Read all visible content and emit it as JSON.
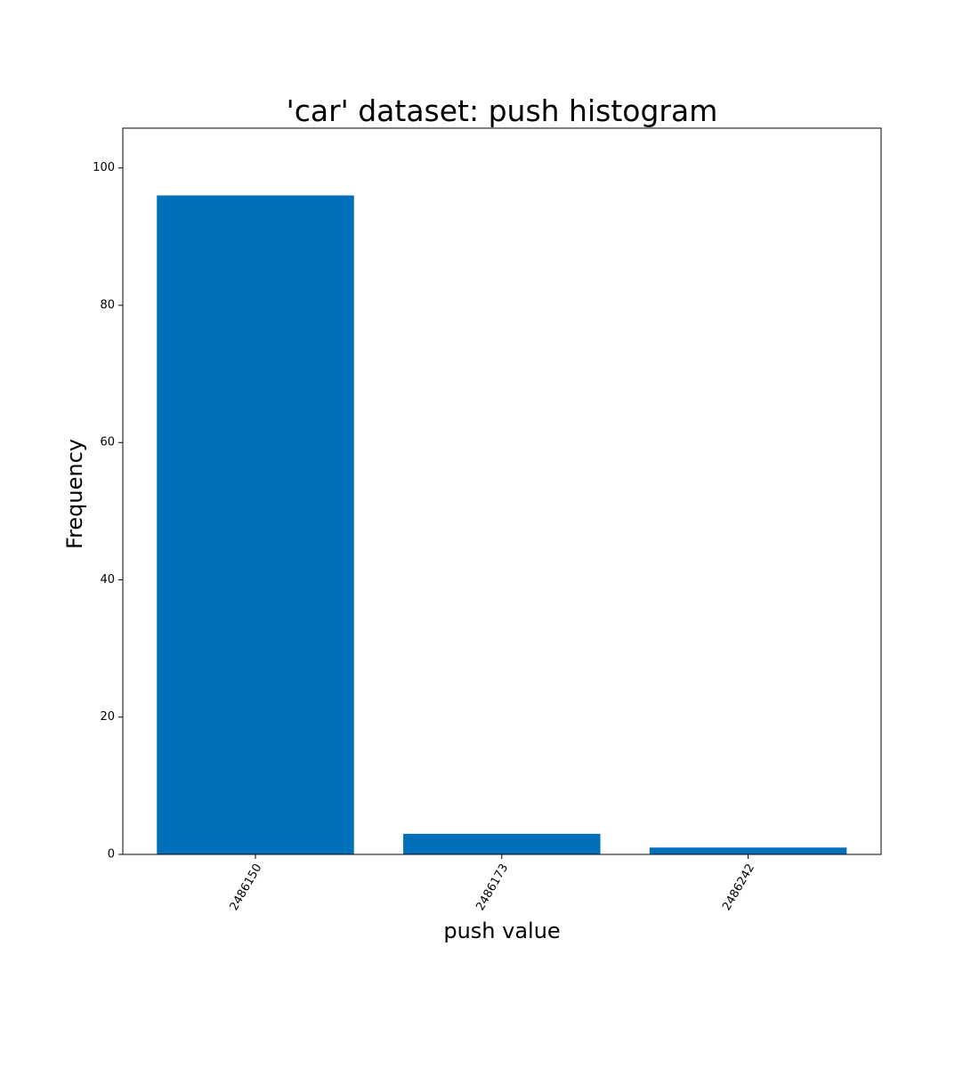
{
  "chart_data": {
    "type": "bar",
    "title": "'car' dataset: push histogram",
    "xlabel": "push value",
    "ylabel": "Frequency",
    "categories": [
      "2486150",
      "2486173",
      "2486242"
    ],
    "values": [
      96,
      3,
      1
    ],
    "ylim": [
      0,
      105.8
    ],
    "yticks": [
      0,
      20,
      40,
      60,
      80,
      100
    ],
    "xtick_rotation_deg": 60,
    "bar_color": "#0070BB",
    "grid": false,
    "legend": "none"
  }
}
